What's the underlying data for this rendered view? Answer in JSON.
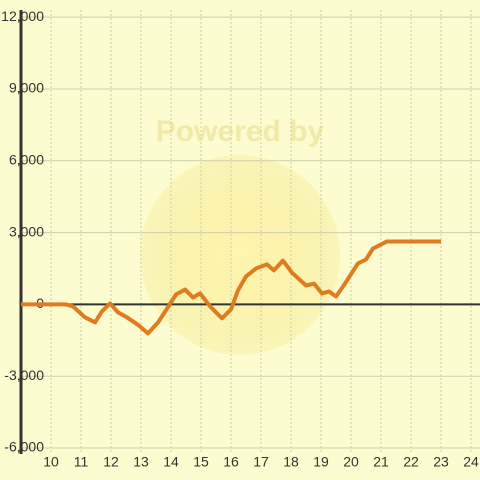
{
  "chart_data": {
    "type": "line",
    "watermark": "Powered by",
    "x": [
      9,
      10.5,
      10.73,
      11.13,
      11.47,
      11.7,
      11.97,
      12.23,
      12.53,
      12.93,
      13.23,
      13.57,
      13.83,
      14.17,
      14.47,
      14.73,
      14.97,
      15.3,
      15.7,
      16.0,
      16.23,
      16.5,
      16.83,
      17.2,
      17.43,
      17.73,
      18.03,
      18.5,
      18.77,
      19.03,
      19.27,
      19.5,
      19.8,
      20.23,
      20.5,
      20.73,
      21.2,
      23.0
    ],
    "series": [
      {
        "color": "#e07b20",
        "values": [
          0,
          0,
          -80,
          -540,
          -750,
          -290,
          40,
          -330,
          -540,
          -880,
          -1210,
          -750,
          -250,
          420,
          620,
          290,
          460,
          -80,
          -580,
          -210,
          580,
          1170,
          1500,
          1670,
          1420,
          1830,
          1330,
          790,
          870,
          460,
          540,
          330,
          870,
          1710,
          1880,
          2330,
          2630,
          2630
        ]
      }
    ],
    "xlim": [
      9,
      24.3
    ],
    "xticks": [
      10,
      11,
      12,
      13,
      14,
      15,
      16,
      17,
      18,
      19,
      20,
      21,
      22,
      23,
      24
    ],
    "ylim": [
      -6250,
      12300
    ],
    "yticks": [
      {
        "value": 12000,
        "label": "12,000"
      },
      {
        "value": 9000,
        "label": "9,000"
      },
      {
        "value": 6000,
        "label": "6,000"
      },
      {
        "value": 3000,
        "label": "3,000"
      },
      0,
      {
        "value": -3000,
        "label": "-3,000"
      },
      {
        "value": -6000,
        "label": "-6,000"
      }
    ],
    "grid": true
  }
}
